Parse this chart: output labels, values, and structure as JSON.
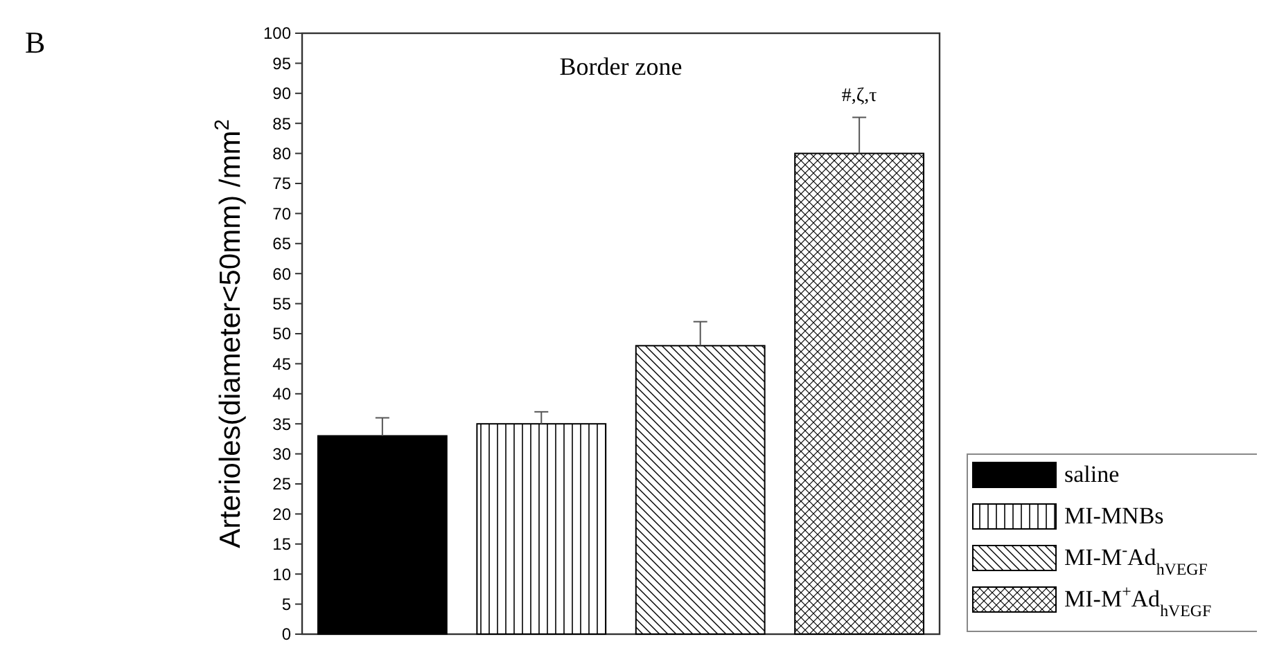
{
  "chart_data": {
    "type": "bar",
    "title": "Border zone",
    "ylabel": "Arterioles(diameter<50mm) /mm$^{2}$",
    "categories": [
      null,
      null,
      null,
      null
    ],
    "stacked": true,
    "ylim": [
      0,
      100
    ],
    "yticks": [
      0,
      5,
      10,
      15,
      20,
      25,
      30,
      35,
      40,
      45,
      50,
      55,
      60,
      65,
      70,
      75,
      80,
      85,
      90,
      95,
      100
    ],
    "legend": "bottom right",
    "annotations": [
      "B",
      {
        "text": "#,ζ,τ",
        "y": 86
      }
    ],
    "series": [
      {
        "name": "saline",
        "color": "#000000",
        "values": [
          33,
          null,
          null,
          null
        ],
        "errors": [
          3,
          null,
          null,
          null
        ]
      },
      {
        "name": "MI-MNBs",
        "color": "#000000",
        "values": [
          null,
          35,
          null,
          null
        ],
        "errors": [
          null,
          2,
          null,
          null
        ]
      },
      {
        "name": "MI-M$^{-}$Ad$_{hVEGF}$",
        "color": "#000000",
        "values": [
          null,
          null,
          48,
          null
        ],
        "errors": [
          null,
          null,
          4,
          null
        ]
      },
      {
        "name": "MI-M$^{+}$Ad$_{hVEGF}$",
        "color": "#000000",
        "values": [
          null,
          null,
          null,
          80
        ],
        "errors": [
          null,
          null,
          null,
          6
        ]
      }
    ]
  }
}
